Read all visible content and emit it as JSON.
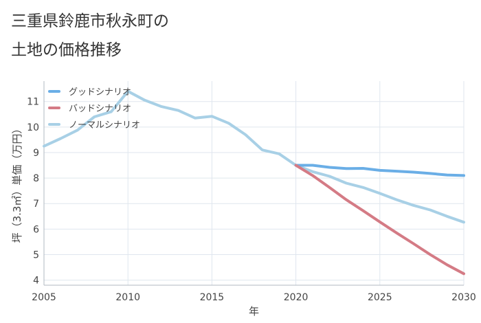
{
  "title_lines": [
    "三重県鈴鹿市秋永町の",
    "土地の価格推移"
  ],
  "chart_data": {
    "type": "line",
    "title": "三重県鈴鹿市秋永町の土地の価格推移",
    "xlabel": "年",
    "ylabel": "坪（3.3㎡）単価（万円）",
    "xlim": [
      2005,
      2030
    ],
    "ylim": [
      3.8,
      11.8
    ],
    "xticks": [
      2005,
      2010,
      2015,
      2020,
      2025,
      2030
    ],
    "yticks": [
      4,
      5,
      6,
      7,
      8,
      9,
      10,
      11
    ],
    "grid": true,
    "legend_position": "top-left",
    "series": [
      {
        "name": "グッドシナリオ",
        "color": "#6aaee6",
        "x": [
          2020,
          2021,
          2022,
          2023,
          2024,
          2025,
          2026,
          2027,
          2028,
          2029,
          2030
        ],
        "y": [
          8.5,
          8.5,
          8.42,
          8.37,
          8.38,
          8.3,
          8.27,
          8.23,
          8.18,
          8.12,
          8.1
        ]
      },
      {
        "name": "バッドシナリオ",
        "color": "#d47b85",
        "x": [
          2020,
          2021,
          2022,
          2023,
          2024,
          2025,
          2026,
          2027,
          2028,
          2029,
          2030
        ],
        "y": [
          8.5,
          8.1,
          7.63,
          7.15,
          6.72,
          6.28,
          5.85,
          5.43,
          5.0,
          4.6,
          4.25
        ]
      },
      {
        "name": "ノーマルシナリオ",
        "color": "#a8d0e6",
        "x": [
          2005,
          2006,
          2007,
          2008,
          2009,
          2010,
          2011,
          2012,
          2013,
          2014,
          2015,
          2016,
          2017,
          2018,
          2019,
          2020,
          2021,
          2022,
          2023,
          2024,
          2025,
          2026,
          2027,
          2028,
          2029,
          2030
        ],
        "y": [
          9.25,
          9.55,
          9.88,
          10.4,
          10.6,
          11.4,
          11.05,
          10.8,
          10.65,
          10.35,
          10.42,
          10.15,
          9.7,
          9.1,
          8.95,
          8.5,
          8.25,
          8.07,
          7.8,
          7.63,
          7.4,
          7.15,
          6.93,
          6.75,
          6.5,
          6.27
        ]
      }
    ]
  }
}
